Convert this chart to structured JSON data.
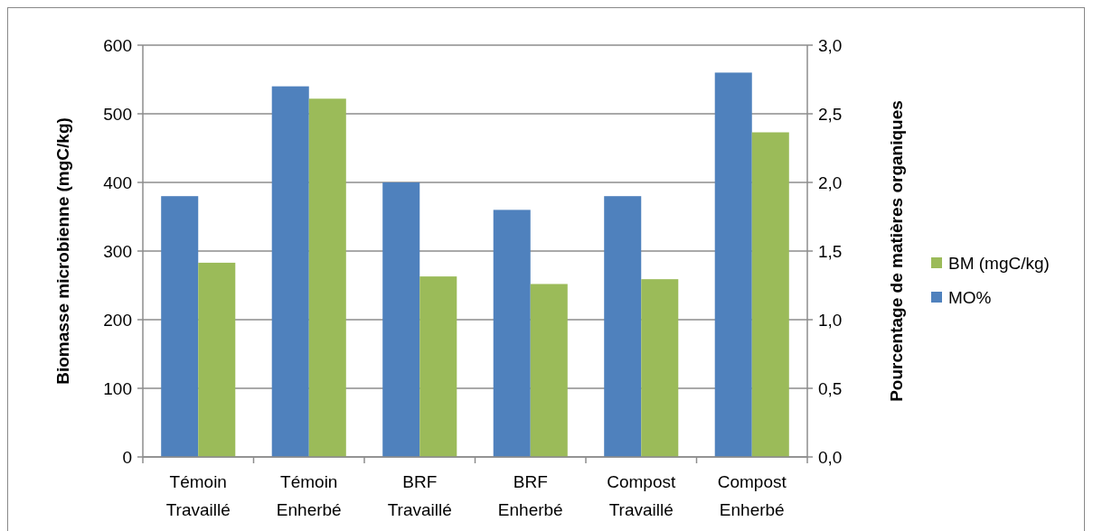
{
  "chart_data": {
    "type": "bar",
    "ylabel": "Biomasse microbienne (mgC/kg)",
    "y2label": "Pourcentage de matières organiques",
    "categories": [
      "Témoin\nTravaillé",
      "Témoin\nEnherbé",
      "BRF\nTravaillé",
      "BRF\nEnherbé",
      "Compost\nTravaillé",
      "Compost\nEnherbé"
    ],
    "series": [
      {
        "name": "MO%",
        "color": "#4f81bd",
        "axis": "y2",
        "values": [
          1.9,
          2.7,
          2.0,
          1.8,
          1.9,
          2.8
        ]
      },
      {
        "name": "BM (mgC/kg)",
        "color": "#9bbb59",
        "values": [
          283,
          522,
          263,
          252,
          259,
          473
        ]
      }
    ],
    "ylim": [
      0,
      600
    ],
    "yticks": [
      0,
      100,
      200,
      300,
      400,
      500,
      600
    ],
    "y2lim": [
      0,
      3
    ],
    "y2ticks": [
      {
        "value": 0,
        "label": "0,0"
      },
      {
        "value": 0.5,
        "label": "0,5"
      },
      {
        "value": 1,
        "label": "1,0"
      },
      {
        "value": 1.5,
        "label": "1,5"
      },
      {
        "value": 2,
        "label": "2,0"
      },
      {
        "value": 2.5,
        "label": "2,5"
      },
      {
        "value": 3,
        "label": "3,0"
      }
    ],
    "grid": "y",
    "legend": "right"
  }
}
